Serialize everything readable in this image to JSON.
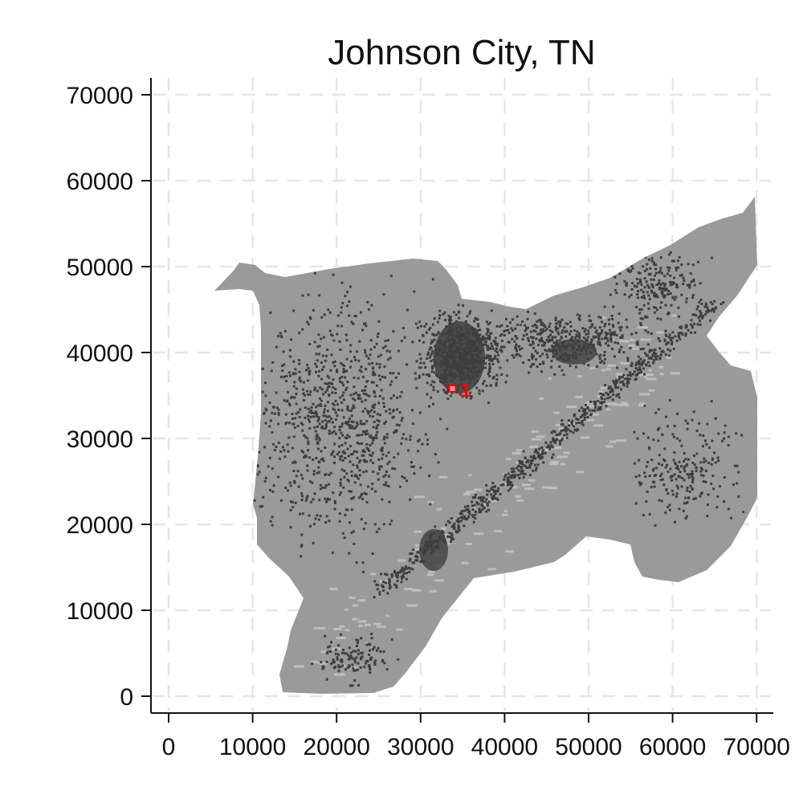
{
  "chart_data": {
    "type": "map",
    "title": "Johnson City, TN",
    "xlabel": "",
    "ylabel": "",
    "xlim": [
      -2000,
      72000
    ],
    "ylim": [
      -2000,
      72000
    ],
    "x_ticks": [
      0,
      10000,
      20000,
      30000,
      40000,
      50000,
      60000,
      70000
    ],
    "y_ticks": [
      0,
      10000,
      20000,
      30000,
      40000,
      50000,
      60000,
      70000
    ],
    "grid": true,
    "region_color": "#9a9a9a",
    "urban_color": "#3e3e3e",
    "lowland_color": "#bdbdbd",
    "marker_color": "#ff0000",
    "markers": [
      {
        "label": "1",
        "x": 33800,
        "y": 35800
      }
    ]
  }
}
